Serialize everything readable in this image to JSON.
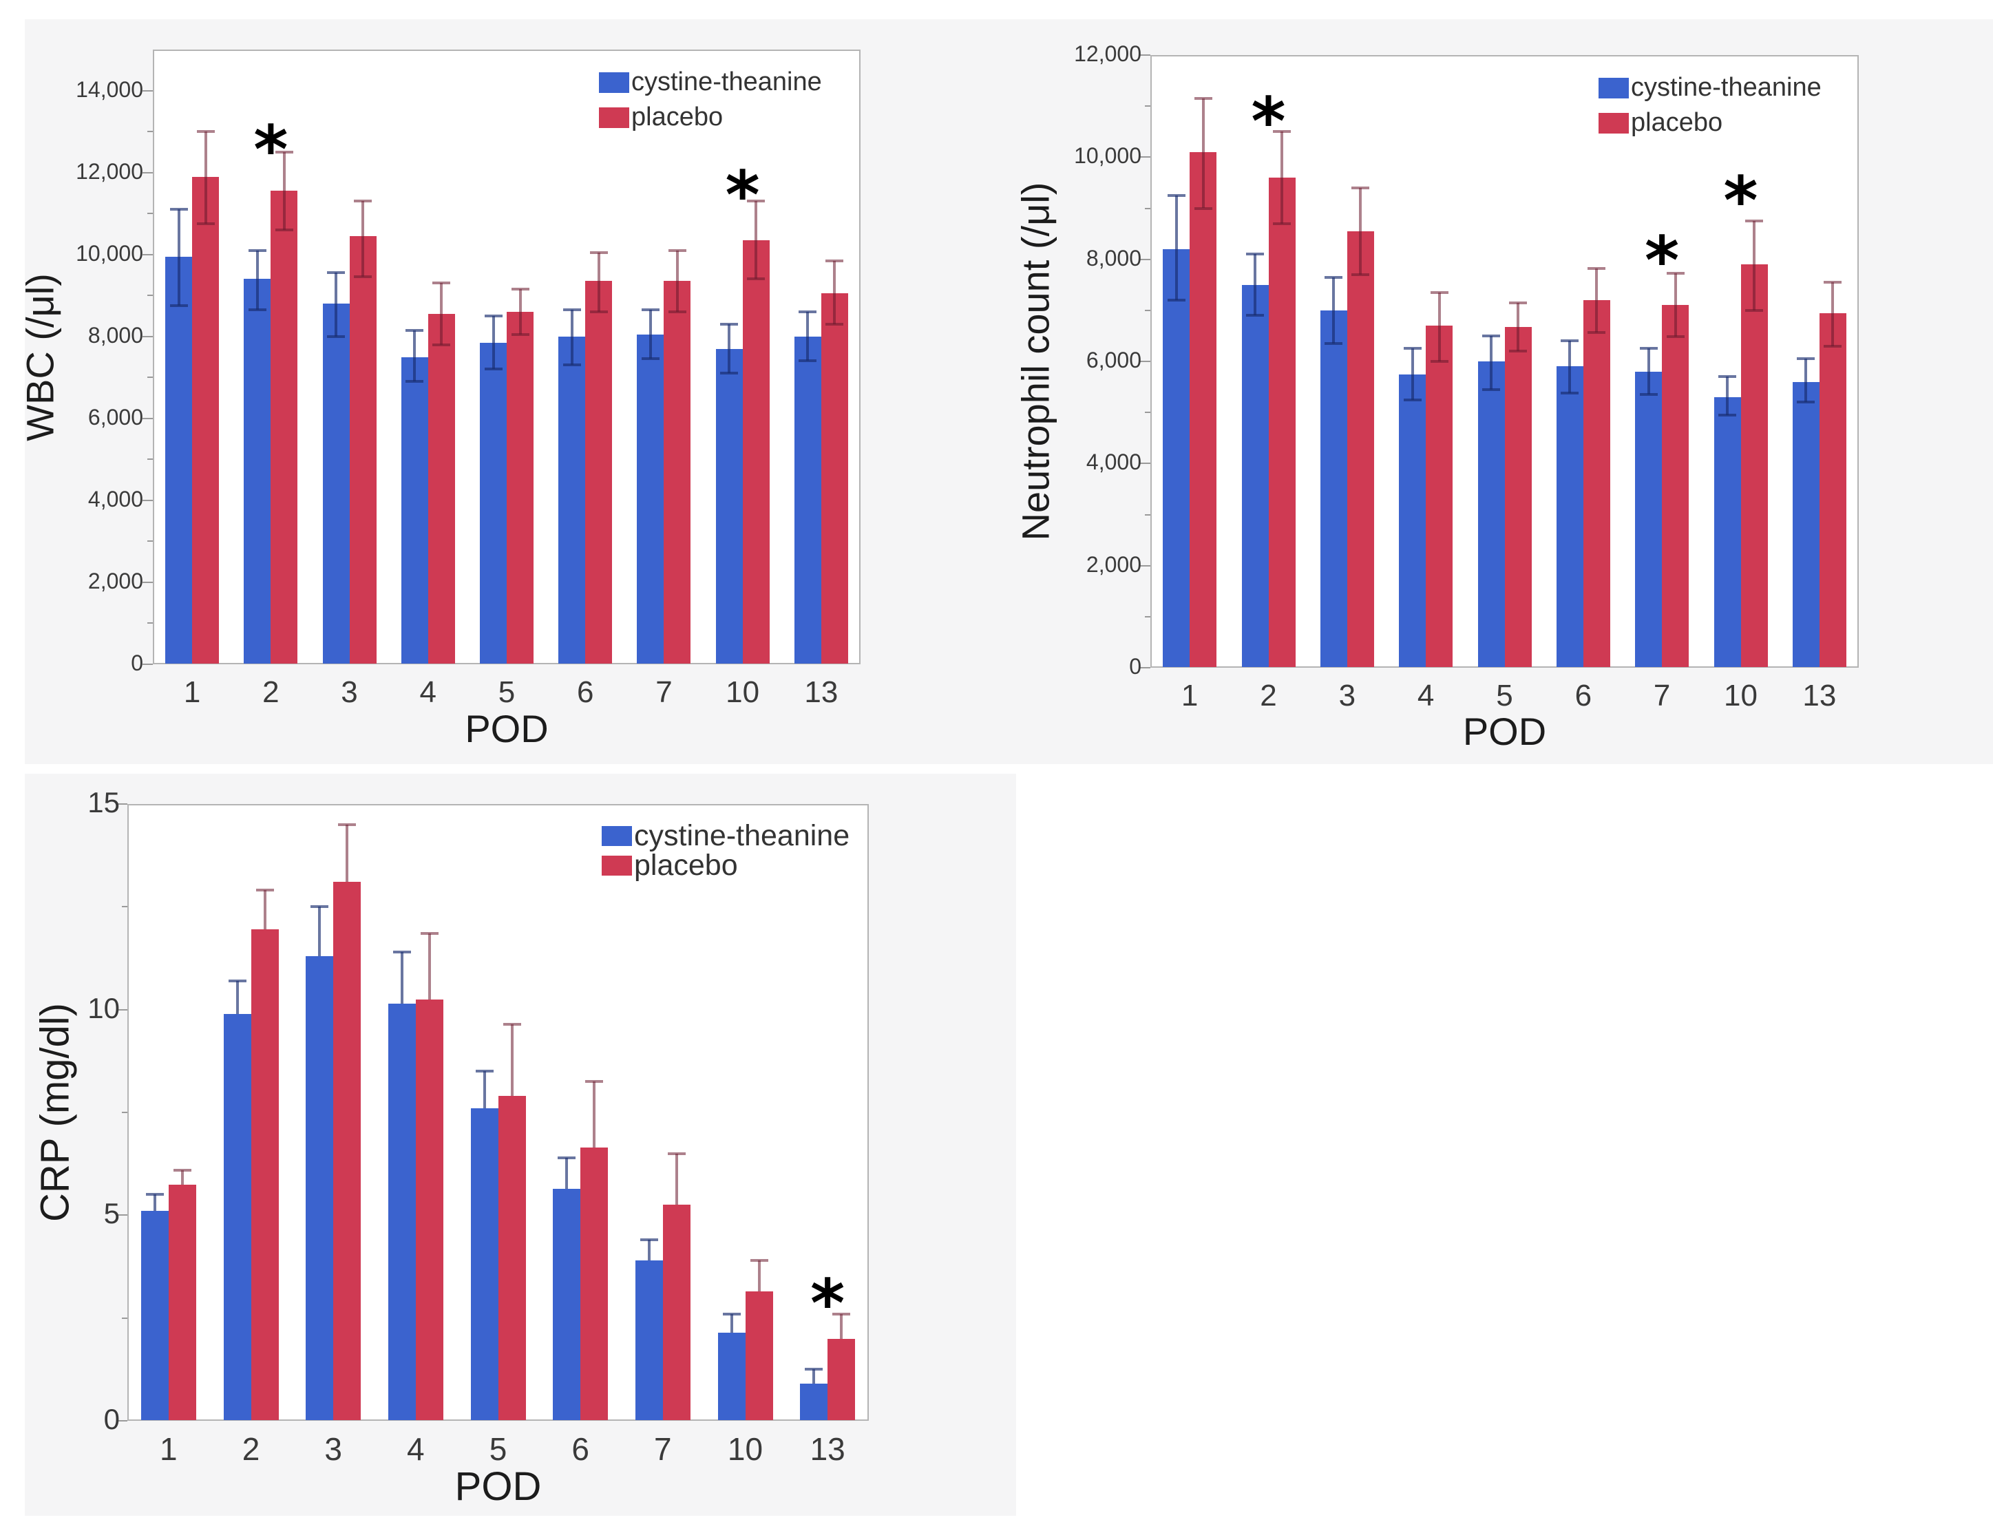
{
  "figure": {
    "background": "#ffffff",
    "panel_color": "#f5f5f6",
    "plot_bg": "#ffffff",
    "border_color": "#b4b4b4",
    "tick_color": "#9a9a9a",
    "tick_label_color": "#3a3a3a",
    "title_color": "#1c1c1c",
    "legend_text_color": "#333333",
    "significance_color": "#000000",
    "series_colors": {
      "cystine_theanine": "#3b63ce",
      "placebo": "#cf3a53"
    }
  },
  "chart_data": [
    {
      "type": "bar",
      "title": "",
      "ylabel": "WBC (/μl)",
      "xlabel": "POD",
      "categories": [
        "1",
        "2",
        "3",
        "4",
        "5",
        "6",
        "7",
        "10",
        "13"
      ],
      "ylim": [
        0,
        15000
      ],
      "grid": false,
      "legend_position": "top-right-inside",
      "yticks": [
        {
          "v": 0,
          "label": "0"
        },
        {
          "v": 2000,
          "label": "2,000"
        },
        {
          "v": 4000,
          "label": "4,000"
        },
        {
          "v": 6000,
          "label": "6,000"
        },
        {
          "v": 8000,
          "label": "8,000"
        },
        {
          "v": 10000,
          "label": "10,000"
        },
        {
          "v": 12000,
          "label": "12,000"
        },
        {
          "v": 14000,
          "label": "14,000"
        }
      ],
      "minor_tick_step": 1000,
      "series": [
        {
          "name": "cystine-theanine",
          "color": "#3b63ce",
          "whisker_color": "rgba(25,45,110,0.65)",
          "values": [
            9950,
            9400,
            8800,
            7500,
            7850,
            8000,
            8050,
            7700,
            8000
          ],
          "err_up": [
            11100,
            10100,
            9550,
            8150,
            8500,
            8650,
            8650,
            8300,
            8600
          ],
          "err_down": [
            8750,
            8650,
            8000,
            6900,
            7200,
            7300,
            7450,
            7100,
            7400
          ]
        },
        {
          "name": "placebo",
          "color": "#cf3a53",
          "whisker_color": "rgba(105,25,45,0.55)",
          "values": [
            11900,
            11550,
            10450,
            8550,
            8600,
            9350,
            9350,
            10350,
            9050
          ],
          "err_up": [
            13000,
            12500,
            11300,
            9300,
            9150,
            10050,
            10100,
            11300,
            9850
          ],
          "err_down": [
            10750,
            10600,
            9450,
            7800,
            8050,
            8600,
            8600,
            9400,
            8300
          ]
        }
      ],
      "significance_marks": [
        {
          "category": "2",
          "y": 12800,
          "symbol": "*"
        },
        {
          "category": "10",
          "y": 11700,
          "symbol": "*"
        }
      ]
    },
    {
      "type": "bar",
      "title": "",
      "ylabel": "Neutrophil count (/μl)",
      "xlabel": "POD",
      "categories": [
        "1",
        "2",
        "3",
        "4",
        "5",
        "6",
        "7",
        "10",
        "13"
      ],
      "ylim": [
        0,
        12000
      ],
      "grid": false,
      "legend_position": "top-right-inside",
      "yticks": [
        {
          "v": 0,
          "label": "0"
        },
        {
          "v": 2000,
          "label": "2,000"
        },
        {
          "v": 4000,
          "label": "4,000"
        },
        {
          "v": 6000,
          "label": "6,000"
        },
        {
          "v": 8000,
          "label": "8,000"
        },
        {
          "v": 10000,
          "label": "10,000"
        },
        {
          "v": 12000,
          "label": "12,000"
        }
      ],
      "minor_tick_step": 1000,
      "series": [
        {
          "name": "cystine-theanine",
          "color": "#3b63ce",
          "whisker_color": "rgba(25,45,110,0.65)",
          "values": [
            8200,
            7500,
            7000,
            5750,
            6000,
            5900,
            5800,
            5300,
            5600
          ],
          "err_up": [
            9250,
            8100,
            7650,
            6250,
            6500,
            6400,
            6250,
            5700,
            6050
          ],
          "err_down": [
            7200,
            6900,
            6350,
            5250,
            5450,
            5380,
            5350,
            4950,
            5200
          ]
        },
        {
          "name": "placebo",
          "color": "#cf3a53",
          "whisker_color": "rgba(105,25,45,0.55)",
          "values": [
            10100,
            9600,
            8550,
            6700,
            6680,
            7200,
            7100,
            7900,
            6950
          ],
          "err_up": [
            11150,
            10500,
            9400,
            7350,
            7150,
            7820,
            7730,
            8750,
            7550
          ],
          "err_down": [
            9000,
            8700,
            7700,
            6000,
            6200,
            6560,
            6480,
            7000,
            6300
          ]
        }
      ],
      "significance_marks": [
        {
          "category": "2",
          "y": 10900,
          "symbol": "*"
        },
        {
          "category": "7",
          "y": 8180,
          "symbol": "*"
        },
        {
          "category": "10",
          "y": 9350,
          "symbol": "*"
        }
      ]
    },
    {
      "type": "bar",
      "title": "",
      "ylabel": "CRP (mg/dl)",
      "xlabel": "POD",
      "categories": [
        "1",
        "2",
        "3",
        "4",
        "5",
        "6",
        "7",
        "10",
        "13"
      ],
      "ylim": [
        0,
        15
      ],
      "grid": false,
      "legend_position": "top-right-inside",
      "yticks": [
        {
          "v": 0,
          "label": "0"
        },
        {
          "v": 5,
          "label": "5"
        },
        {
          "v": 10,
          "label": "10"
        },
        {
          "v": 15,
          "label": "15"
        }
      ],
      "minor_tick_step": 2.5,
      "series": [
        {
          "name": "cystine-theanine",
          "color": "#3b63ce",
          "whisker_color": "rgba(25,45,110,0.65)",
          "values": [
            5.1,
            9.9,
            11.3,
            10.15,
            7.6,
            5.65,
            3.9,
            2.15,
            0.9
          ],
          "err_up": [
            5.5,
            10.7,
            12.5,
            11.4,
            8.5,
            6.4,
            4.4,
            2.6,
            1.25
          ],
          "err_down": null
        },
        {
          "name": "placebo",
          "color": "#cf3a53",
          "whisker_color": "rgba(105,25,45,0.55)",
          "values": [
            5.75,
            11.95,
            13.1,
            10.25,
            7.9,
            6.65,
            5.25,
            3.15,
            2.0
          ],
          "err_up": [
            6.1,
            12.9,
            14.5,
            11.85,
            9.65,
            8.25,
            6.5,
            3.9,
            2.6
          ],
          "err_down": null
        }
      ],
      "significance_marks": [
        {
          "category": "13",
          "y": 3.1,
          "symbol": "*"
        }
      ]
    }
  ]
}
